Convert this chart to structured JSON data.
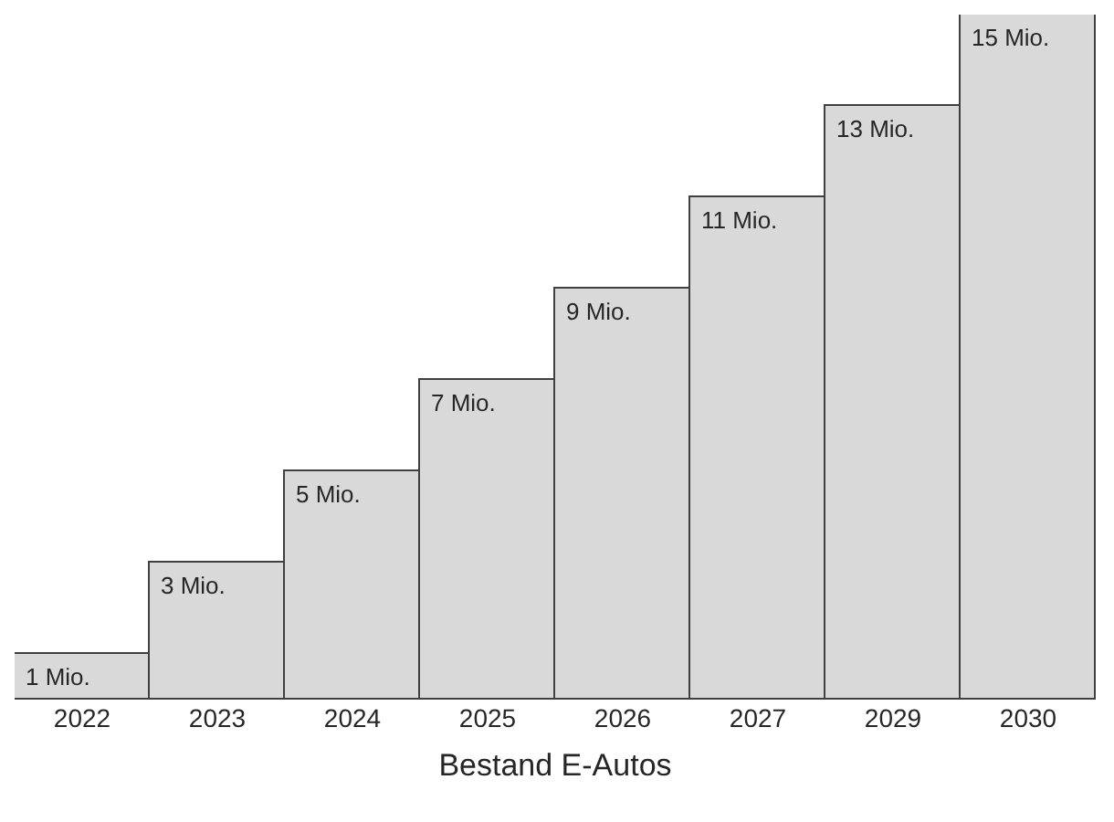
{
  "chart_data": {
    "type": "bar",
    "xlabel": "Bestand E-Autos",
    "categories": [
      "2022",
      "2023",
      "2024",
      "2025",
      "2026",
      "2027",
      "2029",
      "2030"
    ],
    "values": [
      1,
      3,
      5,
      7,
      9,
      11,
      13,
      15
    ],
    "value_labels": [
      "1 Mio.",
      "3 Mio.",
      "5 Mio.",
      "7 Mio.",
      "9 Mio.",
      "11 Mio.",
      "13 Mio.",
      "15 Mio."
    ],
    "color": "#d9d9d9"
  }
}
